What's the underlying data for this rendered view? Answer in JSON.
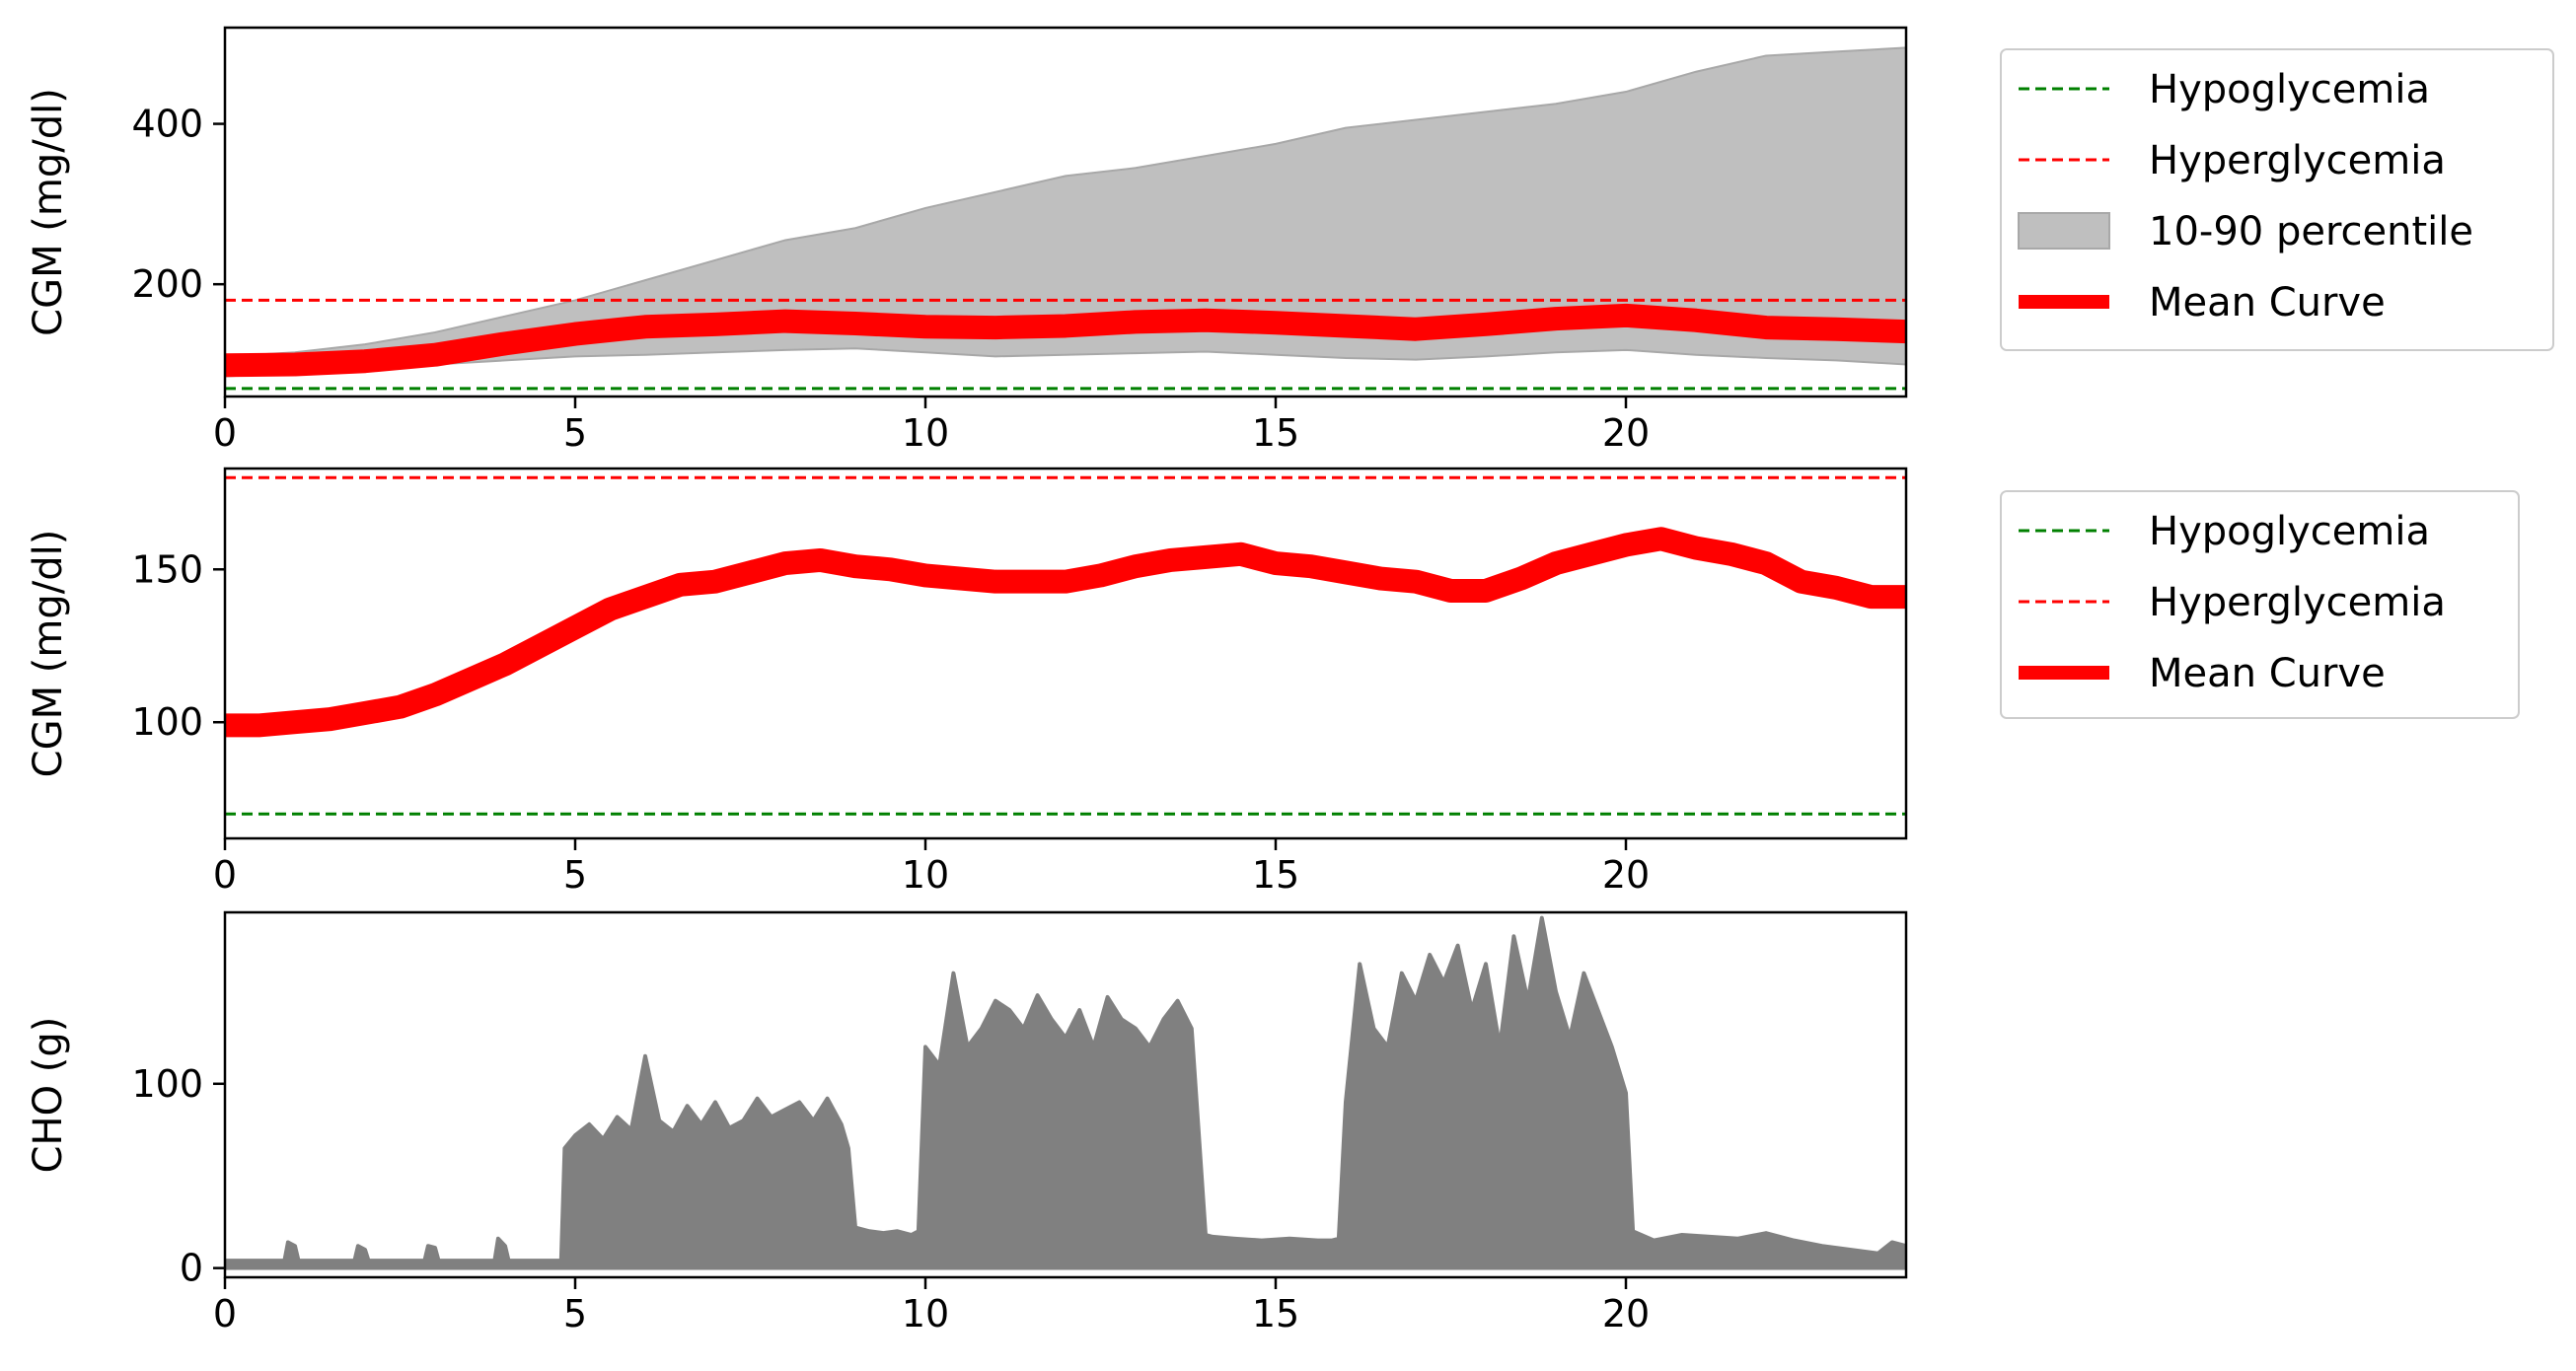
{
  "chart_data": [
    {
      "type": "area",
      "ylabel": "CGM (mg/dl)",
      "xlim": [
        0,
        24
      ],
      "ylim": [
        60,
        520
      ],
      "xticks": [
        0,
        5,
        10,
        15,
        20
      ],
      "yticks": [
        200,
        400
      ],
      "hypoglycemia": 70,
      "hyperglycemia": 180,
      "legend": [
        "Hypoglycemia",
        "Hyperglycemia",
        "10-90 percentile",
        "Mean Curve"
      ],
      "x": [
        0,
        1,
        2,
        3,
        4,
        5,
        6,
        7,
        8,
        9,
        10,
        11,
        12,
        13,
        14,
        15,
        16,
        17,
        18,
        19,
        20,
        21,
        22,
        23,
        24
      ],
      "p10": [
        85,
        90,
        95,
        100,
        105,
        110,
        112,
        115,
        118,
        120,
        115,
        110,
        112,
        114,
        116,
        112,
        108,
        106,
        110,
        115,
        118,
        112,
        108,
        105,
        100
      ],
      "p90": [
        110,
        115,
        125,
        140,
        160,
        180,
        205,
        230,
        255,
        270,
        295,
        315,
        335,
        345,
        360,
        375,
        395,
        405,
        415,
        425,
        440,
        465,
        485,
        490,
        495
      ],
      "mean": [
        99,
        100,
        104,
        112,
        126,
        138,
        147,
        150,
        154,
        151,
        147,
        146,
        148,
        153,
        155,
        152,
        148,
        144,
        150,
        157,
        161,
        155,
        146,
        144,
        141
      ]
    },
    {
      "type": "line",
      "ylabel": "CGM (mg/dl)",
      "xlim": [
        0,
        24
      ],
      "ylim": [
        62,
        183
      ],
      "xticks": [
        0,
        5,
        10,
        15,
        20
      ],
      "yticks": [
        100,
        150
      ],
      "hypoglycemia": 70,
      "hyperglycemia": 180,
      "legend": [
        "Hypoglycemia",
        "Hyperglycemia",
        "Mean Curve"
      ],
      "x": [
        0,
        0.5,
        1,
        1.5,
        2,
        2.5,
        3,
        3.5,
        4,
        4.5,
        5,
        5.5,
        6,
        6.5,
        7,
        7.5,
        8,
        8.5,
        9,
        9.5,
        10,
        10.5,
        11,
        11.5,
        12,
        12.5,
        13,
        13.5,
        14,
        14.5,
        15,
        15.5,
        16,
        16.5,
        17,
        17.5,
        18,
        18.5,
        19,
        19.5,
        20,
        20.5,
        21,
        21.5,
        22,
        22.5,
        23,
        23.5,
        24
      ],
      "mean": [
        99,
        99,
        100,
        101,
        103,
        105,
        109,
        114,
        119,
        125,
        131,
        137,
        141,
        145,
        146,
        149,
        152,
        153,
        151,
        150,
        148,
        147,
        146,
        146,
        146,
        148,
        151,
        153,
        154,
        155,
        152,
        151,
        149,
        147,
        146,
        143,
        143,
        147,
        152,
        155,
        158,
        160,
        157,
        155,
        152,
        146,
        144,
        141,
        141
      ]
    },
    {
      "type": "area",
      "ylabel": "CHO (g)",
      "xlim": [
        0,
        24
      ],
      "ylim": [
        -5,
        193
      ],
      "xticks": [
        0,
        5,
        10,
        15,
        20
      ],
      "yticks": [
        0,
        100
      ],
      "x": [
        0,
        0.85,
        0.9,
        1.0,
        1.05,
        1.85,
        1.9,
        2.0,
        2.05,
        2.85,
        2.9,
        3.0,
        3.05,
        3.85,
        3.9,
        4.0,
        4.05,
        4.8,
        4.85,
        5.0,
        5.2,
        5.4,
        5.6,
        5.8,
        6.0,
        6.2,
        6.4,
        6.6,
        6.8,
        7.0,
        7.2,
        7.4,
        7.6,
        7.8,
        8.0,
        8.2,
        8.4,
        8.6,
        8.8,
        8.9,
        9.0,
        9.2,
        9.4,
        9.6,
        9.8,
        9.9,
        10.0,
        10.2,
        10.4,
        10.6,
        10.8,
        11.0,
        11.2,
        11.4,
        11.6,
        11.8,
        12.0,
        12.2,
        12.4,
        12.6,
        12.8,
        13.0,
        13.2,
        13.4,
        13.6,
        13.8,
        14.0,
        14.1,
        14.4,
        14.8,
        15.2,
        15.6,
        15.8,
        15.9,
        16.0,
        16.2,
        16.4,
        16.6,
        16.8,
        17.0,
        17.2,
        17.4,
        17.6,
        17.8,
        18.0,
        18.2,
        18.4,
        18.6,
        18.8,
        19.0,
        19.2,
        19.4,
        19.6,
        19.8,
        20.0,
        20.1,
        20.4,
        20.8,
        21.2,
        21.6,
        22.0,
        22.4,
        22.8,
        23.2,
        23.6,
        23.8,
        24.0
      ],
      "y": [
        4,
        4,
        14,
        12,
        4,
        4,
        12,
        10,
        4,
        4,
        12,
        11,
        4,
        4,
        16,
        12,
        4,
        4,
        65,
        72,
        78,
        70,
        82,
        75,
        115,
        80,
        74,
        88,
        78,
        90,
        76,
        80,
        92,
        82,
        86,
        90,
        80,
        92,
        78,
        65,
        22,
        20,
        19,
        20,
        18,
        20,
        120,
        110,
        160,
        120,
        130,
        145,
        140,
        130,
        148,
        135,
        125,
        140,
        120,
        147,
        135,
        130,
        120,
        135,
        145,
        130,
        18,
        17,
        16,
        15,
        16,
        15,
        15,
        16,
        90,
        165,
        130,
        120,
        160,
        145,
        170,
        155,
        175,
        140,
        165,
        120,
        180,
        145,
        190,
        150,
        125,
        160,
        140,
        120,
        95,
        20,
        15,
        18,
        17,
        16,
        19,
        15,
        12,
        10,
        8,
        14,
        12
      ]
    }
  ],
  "colors": {
    "hypo": "#008000",
    "hyper": "#ff0000",
    "band": "#bfbfbf",
    "mean": "#ff0000",
    "cho": "#808080",
    "legend_border": "#cccccc"
  }
}
